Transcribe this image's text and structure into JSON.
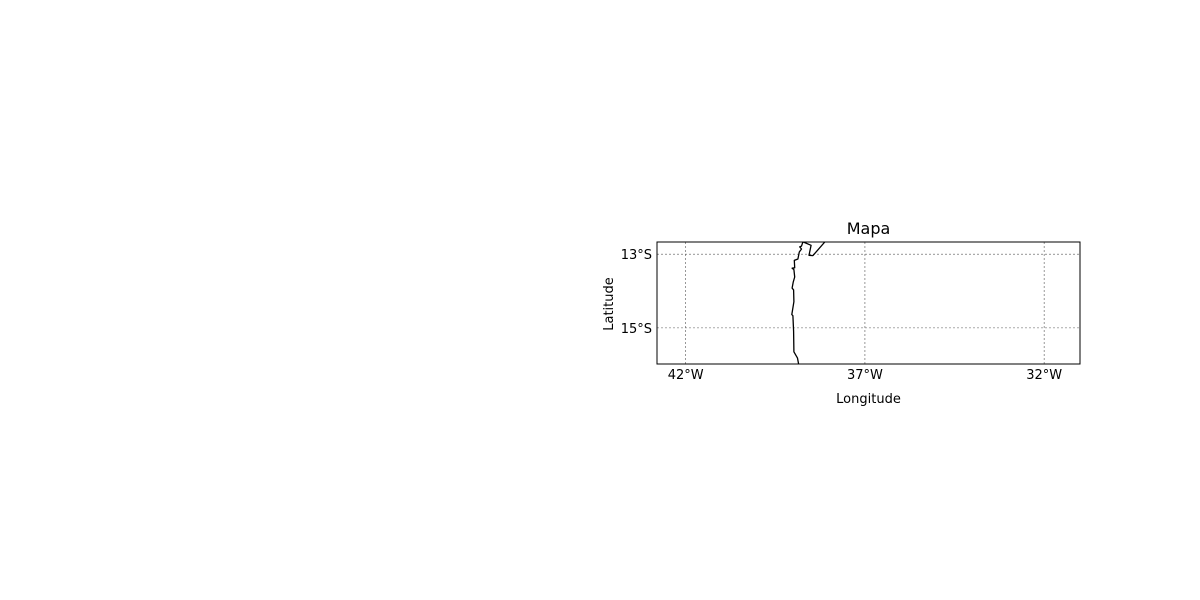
{
  "map": {
    "title": "Mapa",
    "xlabel": "Longitude",
    "ylabel": "Latitude",
    "extent": {
      "lon": [
        -42.8,
        -31.0
      ],
      "lat": [
        -15.98,
        -12.67
      ]
    },
    "x_ticks": [
      {
        "value": -42,
        "label": "42°W"
      },
      {
        "value": -37,
        "label": "37°W"
      },
      {
        "value": -32,
        "label": "32°W"
      }
    ],
    "y_ticks": [
      {
        "value": -13,
        "label": "13°S"
      },
      {
        "value": -15,
        "label": "15°S"
      }
    ],
    "gridlines": true,
    "coastline_color": "#000000",
    "grid_color": "#555555",
    "coastline": [
      [
        -38.73,
        -12.67
      ],
      [
        -38.77,
        -12.78
      ],
      [
        -38.82,
        -12.8
      ],
      [
        -38.77,
        -12.86
      ],
      [
        -38.83,
        -12.94
      ],
      [
        -38.87,
        -13.13
      ],
      [
        -38.97,
        -13.17
      ],
      [
        -38.96,
        -13.37
      ],
      [
        -39.03,
        -13.38
      ],
      [
        -38.98,
        -13.42
      ],
      [
        -38.96,
        -13.62
      ],
      [
        -39.0,
        -13.76
      ],
      [
        -39.03,
        -13.92
      ],
      [
        -38.99,
        -13.97
      ],
      [
        -38.98,
        -14.29
      ],
      [
        -39.04,
        -14.64
      ],
      [
        -39.01,
        -14.67
      ],
      [
        -38.99,
        -15.09
      ],
      [
        -38.98,
        -15.65
      ],
      [
        -38.88,
        -15.82
      ],
      [
        -38.85,
        -15.98
      ]
    ],
    "coastline_segment_2": [
      [
        -38.12,
        -12.67
      ],
      [
        -38.45,
        -13.04
      ],
      [
        -38.56,
        -13.03
      ],
      [
        -38.5,
        -12.76
      ],
      [
        -38.72,
        -12.67
      ]
    ]
  }
}
